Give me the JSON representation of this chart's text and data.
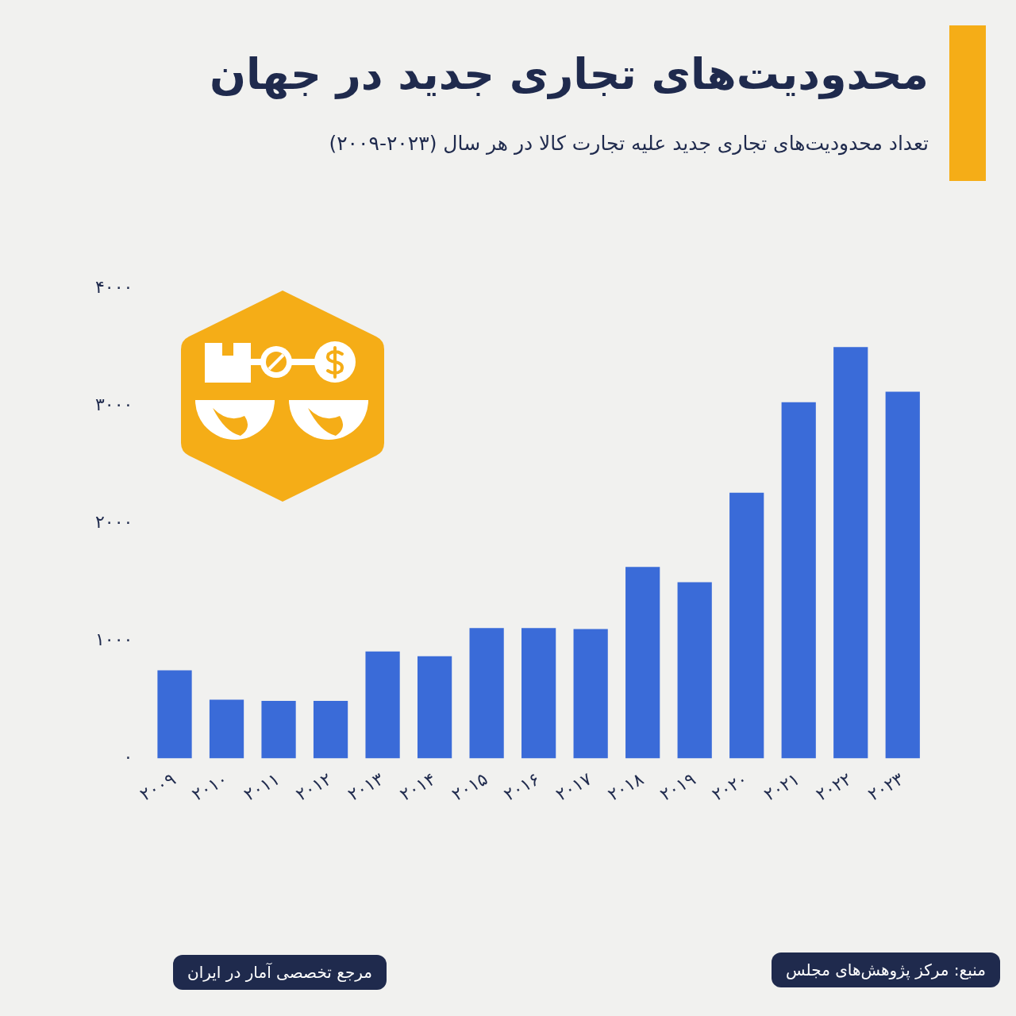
{
  "chart_data": {
    "type": "bar",
    "title": "محدودیت‌های تجاری جدید در جهان",
    "subtitle": "تعداد محدودیت‌های تجاری جدید علیه تجارت کالا در هر سال (۲۰۲۳-۲۰۰۹)",
    "categories": [
      "۲۰۰۹",
      "۲۰۱۰",
      "۲۰۱۱",
      "۲۰۱۲",
      "۲۰۱۳",
      "۲۰۱۴",
      "۲۰۱۵",
      "۲۰۱۶",
      "۲۰۱۷",
      "۲۰۱۸",
      "۲۰۱۹",
      "۲۰۲۰",
      "۲۰۲۱",
      "۲۰۲۲",
      "۲۰۲۳"
    ],
    "values": [
      750,
      500,
      490,
      490,
      910,
      870,
      1110,
      1110,
      1100,
      1630,
      1500,
      2260,
      3030,
      3500,
      3120
    ],
    "color": "#3a6bd8",
    "ylim": [
      0,
      4000
    ],
    "yticks": [
      {
        "value": 0,
        "label": "۰"
      },
      {
        "value": 1000,
        "label": "۱۰۰۰"
      },
      {
        "value": 2000,
        "label": "۲۰۰۰"
      },
      {
        "value": 3000,
        "label": "۳۰۰۰"
      },
      {
        "value": 4000,
        "label": "۴۰۰۰"
      }
    ],
    "grid": false,
    "legend": false,
    "annotations": [
      "منبع: مرکز پژوهش‌های مجلس",
      "مرجع تخصصی آمار در ایران"
    ]
  }
}
